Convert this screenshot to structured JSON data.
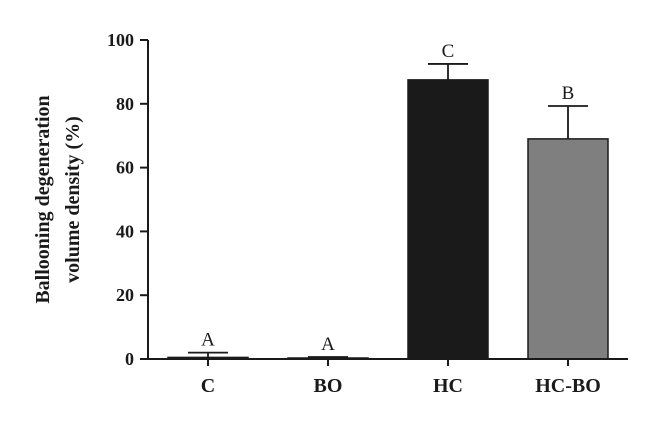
{
  "chart_data": {
    "type": "bar",
    "categories": [
      "C",
      "BO",
      "HC",
      "HC-BO"
    ],
    "values": [
      0.5,
      0.3,
      87.5,
      69.0
    ],
    "errors": [
      1.5,
      0.3,
      5.0,
      10.3
    ],
    "significance_labels": [
      "A",
      "A",
      "C",
      "B"
    ],
    "bar_colors": [
      "#ffffff",
      "#ffffff",
      "#1a1a1a",
      "#7f7f7f"
    ],
    "ylabel_lines": [
      "Ballooning degeneration",
      "volume density (%)"
    ],
    "yticks": [
      0,
      20,
      40,
      60,
      80,
      100
    ],
    "ylim": [
      0,
      100
    ],
    "grid": false,
    "legend": "none"
  }
}
